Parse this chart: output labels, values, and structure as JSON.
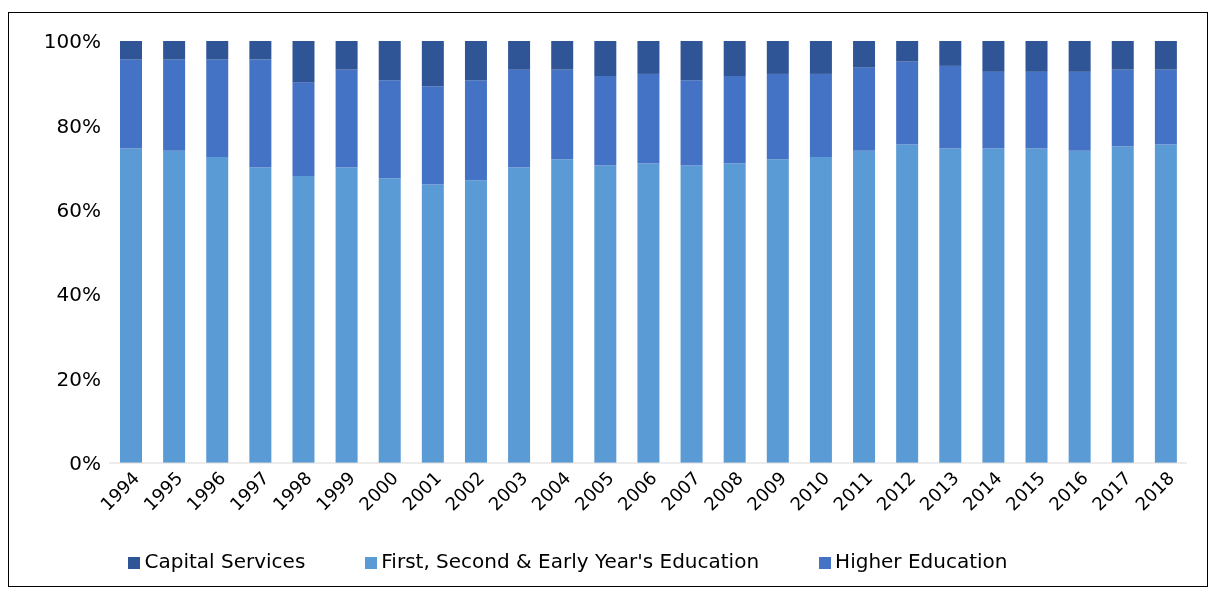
{
  "chart_data": {
    "type": "bar",
    "stacked": true,
    "categories": [
      "1994",
      "1995",
      "1996",
      "1997",
      "1998",
      "1999",
      "2000",
      "2001",
      "2002",
      "2003",
      "2004",
      "2005",
      "2006",
      "2007",
      "2008",
      "2009",
      "2010",
      "2011",
      "2012",
      "2013",
      "2014",
      "2015",
      "2016",
      "2017",
      "2018"
    ],
    "series": [
      {
        "name": "First, Second & Early Year's Education",
        "color": "#5b9bd5",
        "values": [
          74.5,
          74,
          72.5,
          70,
          68,
          70,
          67.5,
          66,
          67,
          70,
          72,
          70.5,
          71,
          70.5,
          71,
          72,
          72.5,
          74,
          75.5,
          74.5,
          74.5,
          74.5,
          74,
          75,
          75.5
        ]
      },
      {
        "name": "Higher Education",
        "color": "#4472c4",
        "values": [
          21.1,
          21.6,
          23.1,
          25.6,
          22.2,
          23.2,
          23.2,
          23.3,
          23.7,
          23.2,
          21.2,
          21.2,
          21.2,
          20.2,
          20.7,
          20.2,
          19.7,
          19.7,
          19.6,
          19.6,
          18.2,
          18.2,
          18.7,
          18.2,
          17.7
        ]
      },
      {
        "name": "Capital Services",
        "color": "#2f5597",
        "values": [
          4.4,
          4.4,
          4.4,
          4.4,
          9.8,
          6.8,
          9.3,
          10.7,
          9.3,
          6.8,
          6.8,
          8.3,
          7.8,
          9.3,
          8.3,
          7.8,
          7.8,
          6.3,
          4.9,
          5.9,
          7.3,
          7.3,
          7.3,
          6.8,
          6.8
        ]
      }
    ],
    "ylim": [
      0,
      100
    ],
    "yticks": [
      {
        "value": 0,
        "label": "0%"
      },
      {
        "value": 20,
        "label": "20%"
      },
      {
        "value": 40,
        "label": "40%"
      },
      {
        "value": 60,
        "label": "60%"
      },
      {
        "value": 80,
        "label": "80%"
      },
      {
        "value": 100,
        "label": "100%"
      }
    ],
    "grid": false,
    "legend": "bottom"
  }
}
